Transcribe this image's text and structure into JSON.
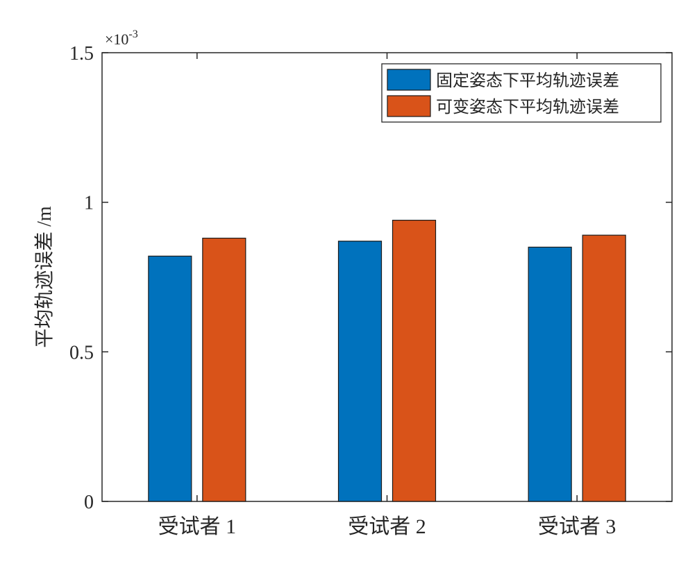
{
  "chart_data": {
    "type": "bar",
    "categories": [
      "受试者 1",
      "受试者 2",
      "受试者 3"
    ],
    "series": [
      {
        "name": "固定姿态下平均轨迹误差",
        "color": "#0072BD",
        "values": [
          0.00082,
          0.00087,
          0.00085
        ]
      },
      {
        "name": "可变姿态下平均轨迹误差",
        "color": "#D95319",
        "values": [
          0.00088,
          0.00094,
          0.00089
        ]
      }
    ],
    "ylabel": "平均轨迹误差 /m",
    "ylim": [
      0,
      0.0015
    ],
    "y_ticks": [
      0,
      0.0005,
      0.001,
      0.0015
    ],
    "y_tick_labels": [
      "0",
      "0.5",
      "1",
      "1.5"
    ],
    "y_exponent_label": "×10-3",
    "y_exponent_base": "×10",
    "y_exponent_power": "-3",
    "legend_position": "top-right",
    "grid": false
  }
}
